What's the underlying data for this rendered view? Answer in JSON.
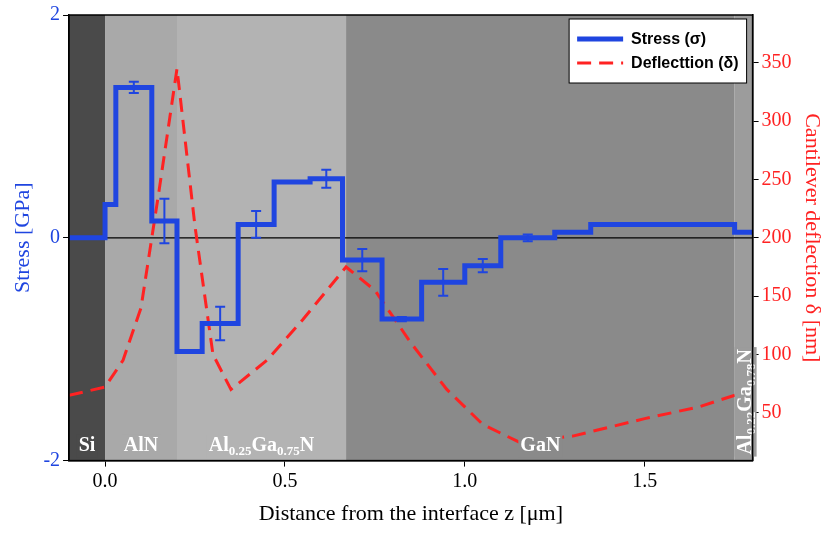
{
  "chart_data": {
    "type": "line",
    "x_label": "Distance from the interface z [μm]",
    "y_label": "Stress [GPa]",
    "y2_label": "Cantilever deflection δ [nm]",
    "xlim": [
      -0.1,
      1.8
    ],
    "xticks": [
      {
        "value": 0,
        "label": "0.0"
      },
      {
        "value": 0.5,
        "label": "0.5"
      },
      {
        "value": 1,
        "label": "1.0"
      },
      {
        "value": 1.5,
        "label": "1.5"
      }
    ],
    "ylim": [
      -2,
      2
    ],
    "yticks": [
      -2,
      0,
      2
    ],
    "y2lim": [
      9,
      391
    ],
    "y2ticks": [
      50,
      100,
      150,
      200,
      250,
      300,
      350
    ],
    "grid": false,
    "legend": "upper right",
    "hline": 0,
    "layers": [
      {
        "label": "Si",
        "start": -0.1,
        "end": 0
      },
      {
        "label": "AlN",
        "start": 0,
        "end": 0.2
      },
      {
        "label": "Al0.25Ga0.75N",
        "start": 0.2,
        "end": 0.67
      },
      {
        "label": "GaN",
        "start": 0.67,
        "end": 1.75
      },
      {
        "label": "Al0.22Ga0.78N",
        "start": 1.75,
        "end": 1.8
      }
    ],
    "series": [
      {
        "name": "Stress (σ)",
        "color": "#1f45e0",
        "line_style": "step",
        "marker": "none",
        "x": [
          -0.1,
          0,
          0.03,
          0.13,
          0.2,
          0.27,
          0.37,
          0.47,
          0.57,
          0.66,
          0.77,
          0.88,
          1.0,
          1.1,
          1.25,
          1.35,
          1.75,
          1.8
        ],
        "values": [
          0,
          0.3,
          1.35,
          0.15,
          -1.02,
          -0.77,
          0.12,
          0.5,
          0.53,
          -0.2,
          -0.73,
          -0.4,
          -0.25,
          0.0,
          0.05,
          0.12,
          0.05,
          0.05
        ],
        "error_bars": [
          {
            "x": 0.08,
            "value": 1.35,
            "error": 0.05
          },
          {
            "x": 0.165,
            "value": 0.15,
            "error": 0.2
          },
          {
            "x": 0.32,
            "value": -0.77,
            "error": 0.15
          },
          {
            "x": 0.42,
            "value": 0.12,
            "error": 0.12
          },
          {
            "x": 0.615,
            "value": 0.53,
            "error": 0.08
          },
          {
            "x": 0.715,
            "value": -0.2,
            "error": 0.1
          },
          {
            "x": 0.825,
            "value": -0.73,
            "error": 0.02
          },
          {
            "x": 0.94,
            "value": -0.4,
            "error": 0.12
          },
          {
            "x": 1.05,
            "value": -0.25,
            "error": 0.06
          },
          {
            "x": 1.175,
            "value": 0,
            "error": 0.03
          }
        ]
      },
      {
        "name": "Deflecttion (δ)",
        "color": "#ff2222",
        "line_style": "dashed",
        "marker": "none",
        "axis": "y2",
        "x": [
          -0.1,
          0,
          0.05,
          0.1,
          0.15,
          0.2,
          0.25,
          0.3,
          0.35,
          0.45,
          0.55,
          0.67,
          0.75,
          0.85,
          0.95,
          1.05,
          1.15,
          1.3,
          1.5,
          1.65,
          1.8
        ],
        "values": [
          65,
          72,
          95,
          140,
          240,
          345,
          210,
          100,
          70,
          95,
          130,
          175,
          155,
          110,
          70,
          40,
          25,
          30,
          45,
          55,
          70
        ]
      }
    ]
  }
}
